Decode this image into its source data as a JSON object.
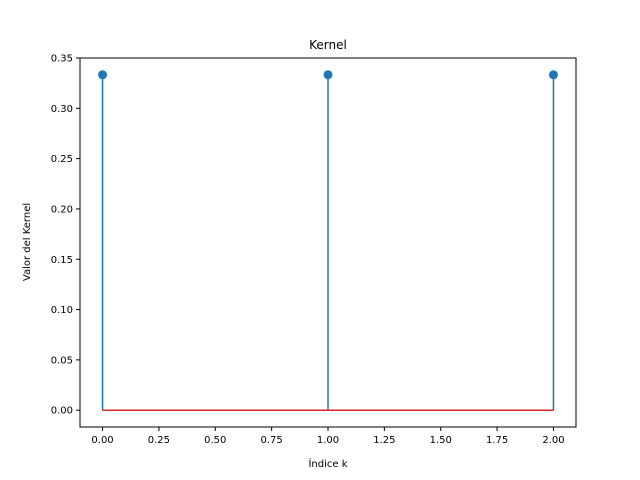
{
  "chart_data": {
    "type": "stem",
    "title": "Kernel",
    "xlabel": "Índice k",
    "ylabel": "Valor del Kernel",
    "x": [
      0,
      1,
      2
    ],
    "y": [
      0.3333,
      0.3333,
      0.3333
    ],
    "xlim": [
      -0.1,
      2.1
    ],
    "ylim": [
      -0.0167,
      0.35
    ],
    "xticks": [
      0.0,
      0.25,
      0.5,
      0.75,
      1.0,
      1.25,
      1.5,
      1.75,
      2.0
    ],
    "xtick_labels": [
      "0.00",
      "0.25",
      "0.50",
      "0.75",
      "1.00",
      "1.25",
      "1.50",
      "1.75",
      "2.00"
    ],
    "yticks": [
      0.0,
      0.05,
      0.1,
      0.15,
      0.2,
      0.25,
      0.3,
      0.35
    ],
    "ytick_labels": [
      "0.00",
      "0.05",
      "0.10",
      "0.15",
      "0.20",
      "0.25",
      "0.30",
      "0.35"
    ],
    "grid": false,
    "colors": {
      "stem": "#1f77b4",
      "baseline": "#d62728",
      "axes": "#000000"
    }
  }
}
